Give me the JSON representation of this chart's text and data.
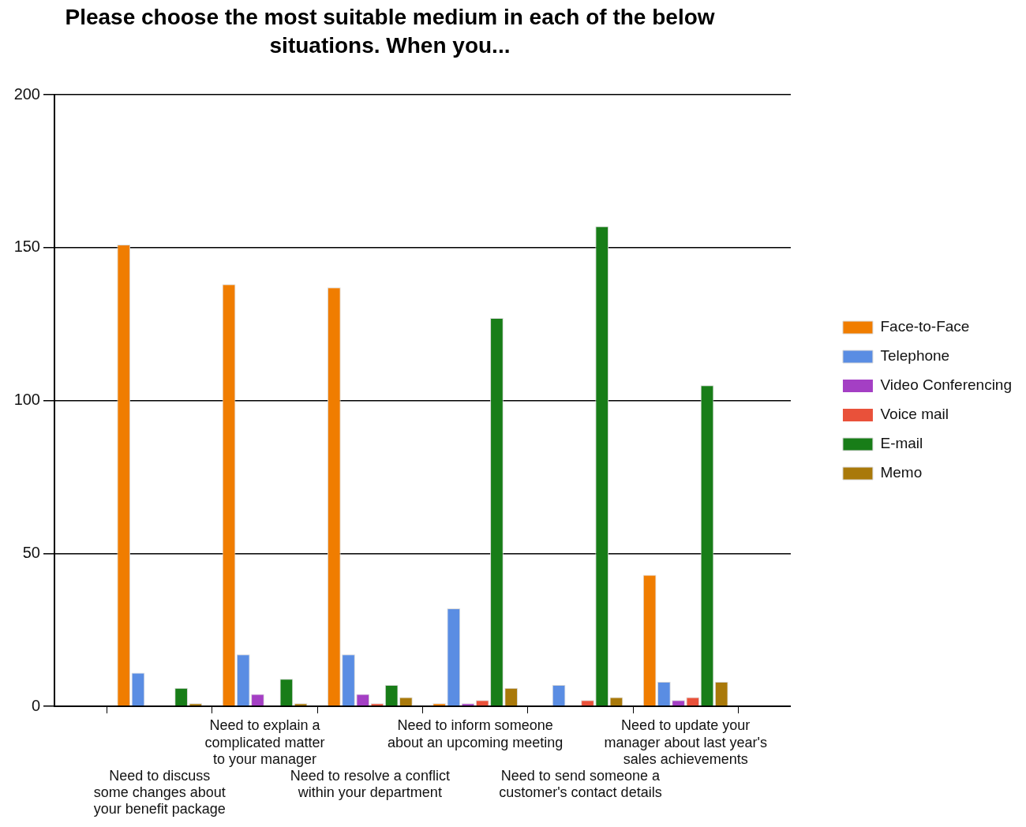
{
  "chart_data": {
    "type": "bar",
    "title": "Please choose the most suitable medium in each of the below situations. When you...",
    "categories": [
      "Need to discuss some changes about your benefit package",
      "Need to explain a complicated matter to your manager",
      "Need to resolve a conflict within your department",
      "Need to inform someone about an upcoming meeting",
      "Need to send someone a customer's contact details",
      "Need to update your manager about last year's sales achievements"
    ],
    "series": [
      {
        "name": "Face-to-Face",
        "color": "#f07d00",
        "values": [
          151,
          138,
          137,
          1,
          0,
          43
        ]
      },
      {
        "name": "Telephone",
        "color": "#5a8de3",
        "values": [
          11,
          17,
          17,
          32,
          7,
          8
        ]
      },
      {
        "name": "Video Conferencing",
        "color": "#a43fc4",
        "values": [
          0,
          4,
          4,
          1,
          0,
          2
        ]
      },
      {
        "name": "Voice mail",
        "color": "#e9513a",
        "values": [
          0,
          0,
          1,
          2,
          2,
          3
        ]
      },
      {
        "name": "E-mail",
        "color": "#187d18",
        "values": [
          6,
          9,
          7,
          127,
          157,
          105
        ]
      },
      {
        "name": "Memo",
        "color": "#a9790a",
        "values": [
          1,
          1,
          3,
          6,
          3,
          8
        ]
      }
    ],
    "ylim": [
      0,
      200
    ],
    "yticks": [
      0,
      50,
      100,
      150,
      200
    ],
    "grid": "y",
    "legend": "right"
  }
}
